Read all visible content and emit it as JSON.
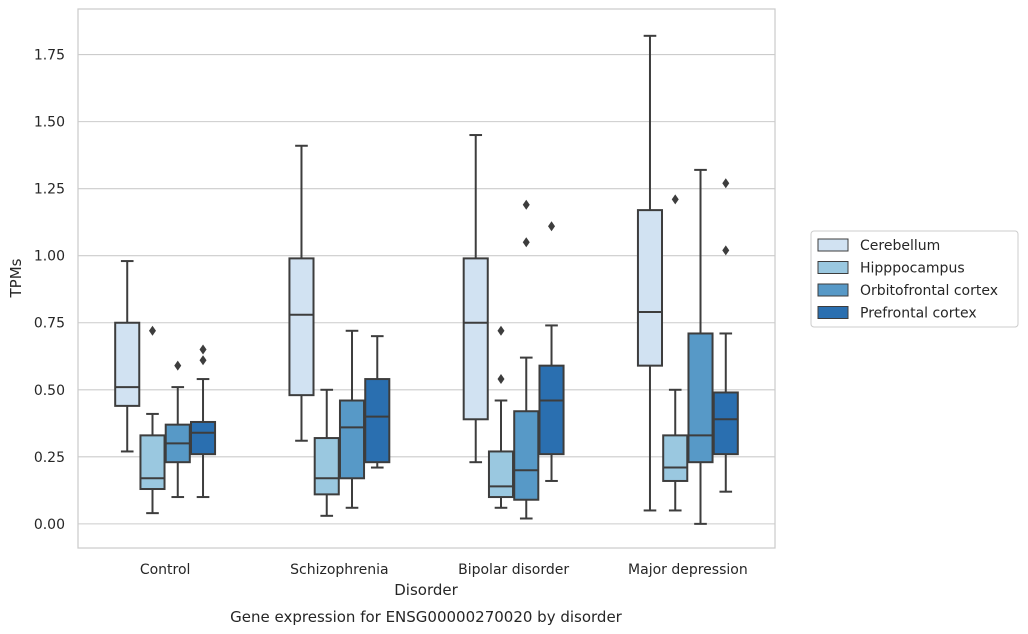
{
  "chart_data": {
    "type": "box",
    "title": "",
    "caption": "Gene expression for ENSG00000270020 by disorder",
    "xlabel": "Disorder",
    "ylabel": "TPMs",
    "ylim": [
      -0.09,
      1.92
    ],
    "yticks": [
      "0.00",
      "0.25",
      "0.50",
      "0.75",
      "1.00",
      "1.25",
      "1.50",
      "1.75"
    ],
    "grid": "horizontal",
    "legend_position": "right",
    "categories": [
      "Control",
      "Schizophrenia",
      "Bipolar disorder",
      "Major depression"
    ],
    "series": [
      {
        "name": "Cerebellum",
        "color": "#d1e2f2",
        "boxes": [
          {
            "whislo": 0.27,
            "q1": 0.44,
            "med": 0.51,
            "q3": 0.75,
            "whishi": 0.98,
            "fliers": []
          },
          {
            "whislo": 0.31,
            "q1": 0.48,
            "med": 0.78,
            "q3": 0.99,
            "whishi": 1.41,
            "fliers": []
          },
          {
            "whislo": 0.23,
            "q1": 0.39,
            "med": 0.75,
            "q3": 0.99,
            "whishi": 1.45,
            "fliers": []
          },
          {
            "whislo": 0.05,
            "q1": 0.59,
            "med": 0.79,
            "q3": 1.17,
            "whishi": 1.82,
            "fliers": []
          }
        ]
      },
      {
        "name": "Hipppocampus",
        "color": "#9ac8e0",
        "boxes": [
          {
            "whislo": 0.04,
            "q1": 0.13,
            "med": 0.17,
            "q3": 0.33,
            "whishi": 0.41,
            "fliers": [
              0.72
            ]
          },
          {
            "whislo": 0.03,
            "q1": 0.11,
            "med": 0.17,
            "q3": 0.32,
            "whishi": 0.5,
            "fliers": []
          },
          {
            "whislo": 0.06,
            "q1": 0.1,
            "med": 0.14,
            "q3": 0.27,
            "whishi": 0.46,
            "fliers": [
              0.54,
              0.72
            ]
          },
          {
            "whislo": 0.05,
            "q1": 0.16,
            "med": 0.21,
            "q3": 0.33,
            "whishi": 0.5,
            "fliers": [
              1.21
            ]
          }
        ]
      },
      {
        "name": "Orbitofrontal cortex",
        "color": "#5799c7",
        "boxes": [
          {
            "whislo": 0.1,
            "q1": 0.23,
            "med": 0.3,
            "q3": 0.37,
            "whishi": 0.51,
            "fliers": [
              0.59
            ]
          },
          {
            "whislo": 0.06,
            "q1": 0.17,
            "med": 0.36,
            "q3": 0.46,
            "whishi": 0.72,
            "fliers": []
          },
          {
            "whislo": 0.02,
            "q1": 0.09,
            "med": 0.2,
            "q3": 0.42,
            "whishi": 0.62,
            "fliers": [
              1.05,
              1.19
            ]
          },
          {
            "whislo": 0.0,
            "q1": 0.23,
            "med": 0.33,
            "q3": 0.71,
            "whishi": 1.32,
            "fliers": []
          }
        ]
      },
      {
        "name": "Prefrontal cortex",
        "color": "#2a6fb0",
        "boxes": [
          {
            "whislo": 0.1,
            "q1": 0.26,
            "med": 0.34,
            "q3": 0.38,
            "whishi": 0.54,
            "fliers": [
              0.61,
              0.65
            ]
          },
          {
            "whislo": 0.21,
            "q1": 0.23,
            "med": 0.4,
            "q3": 0.54,
            "whishi": 0.7,
            "fliers": []
          },
          {
            "whislo": 0.16,
            "q1": 0.26,
            "med": 0.46,
            "q3": 0.59,
            "whishi": 0.74,
            "fliers": [
              1.11
            ]
          },
          {
            "whislo": 0.12,
            "q1": 0.26,
            "med": 0.39,
            "q3": 0.49,
            "whishi": 0.71,
            "fliers": [
              1.02,
              1.27
            ]
          }
        ]
      }
    ]
  }
}
